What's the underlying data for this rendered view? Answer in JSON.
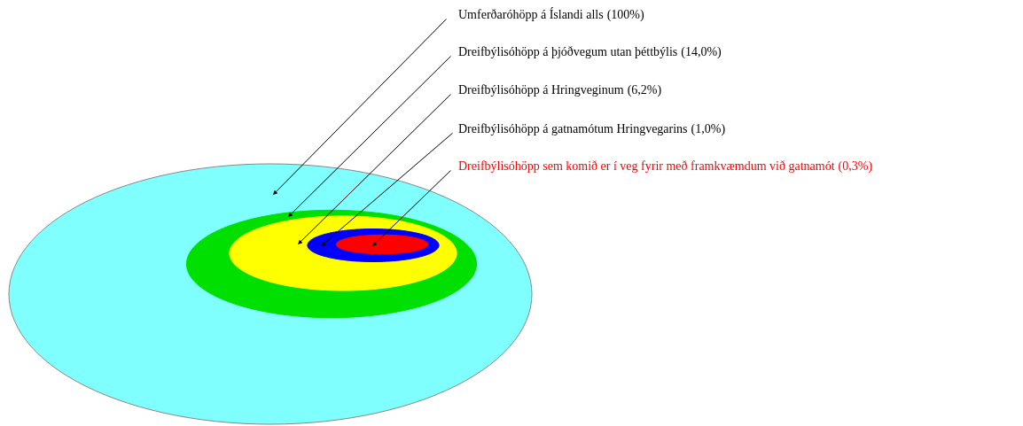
{
  "chart_data": {
    "type": "other",
    "categories": [
      "Umferðaróhöpp á Íslandi alls",
      "Dreifbýlisóhöpp á þjóðvegum utan þéttbýlis",
      "Dreifbýlisóhöpp á Hringveginum",
      "Dreifbýlisóhöpp á gatnamótum Hringvegarins",
      "Dreifbýlisóhöpp sem komið er í veg fyrir með framkvæmdum við gatnamót"
    ],
    "values": [
      100,
      14.0,
      6.2,
      1.0,
      0.3
    ],
    "value_labels": [
      "(100%)",
      "(14,0%)",
      "(6,2%)",
      "(1,0%)",
      "(0,3%)"
    ],
    "colors": [
      "#80ffff",
      "#00e000",
      "#ffff00",
      "#0000ff",
      "#ff0000"
    ]
  }
}
